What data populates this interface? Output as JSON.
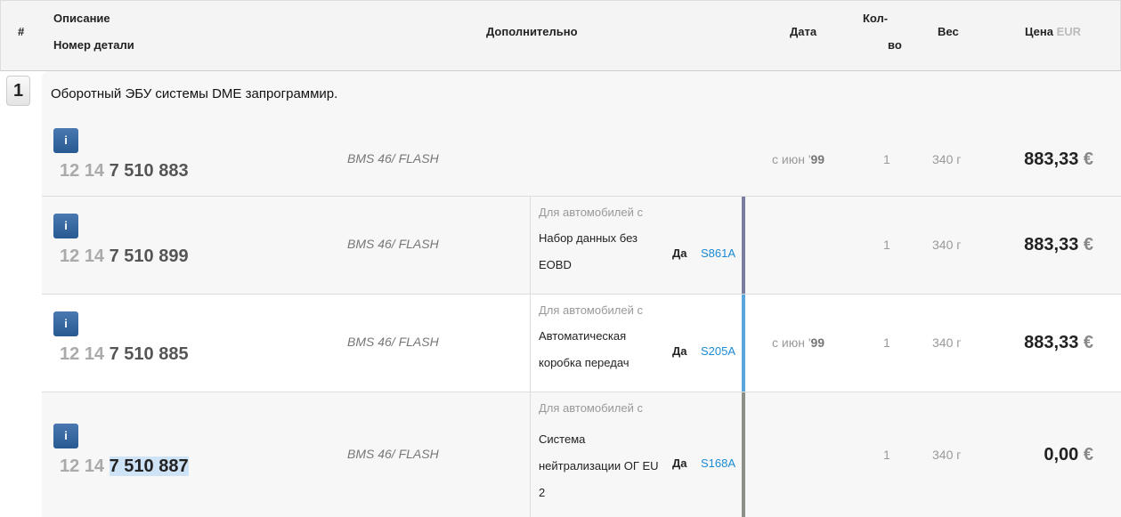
{
  "header": {
    "num": "#",
    "desc": "Описание",
    "part": "Номер детали",
    "extra": "Дополнительно",
    "date": "Дата",
    "qty1": "Кол-",
    "qty2": "во",
    "weight": "Вес",
    "price": "Цена",
    "currency": "EUR"
  },
  "group": {
    "index": "1",
    "title": "Оборотный ЭБУ системы DME запрограммир."
  },
  "rows": [
    {
      "pn_a": "12",
      "pn_b": "14",
      "pn_c": "7 510 883",
      "info": "i",
      "extra": "BMS 46/ FLASH",
      "for": "",
      "cond": "",
      "yes": "",
      "code": "",
      "date_pre": "с июн '",
      "date_year": "99",
      "qty": "1",
      "weight": "340 г",
      "price": "883,33",
      "cur": "€",
      "bar": ""
    },
    {
      "pn_a": "12",
      "pn_b": "14",
      "pn_c": "7 510 899",
      "info": "i",
      "extra": "BMS 46/ FLASH",
      "for": "Для автомобилей с",
      "cond": "Набор данных без EOBD",
      "yes": "Да",
      "code": "S861A",
      "date_pre": "",
      "date_year": "",
      "qty": "1",
      "weight": "340 г",
      "price": "883,33",
      "cur": "€",
      "bar": "#7a7ca2"
    },
    {
      "pn_a": "12",
      "pn_b": "14",
      "pn_c": "7 510 885",
      "info": "i",
      "extra": "BMS 46/ FLASH",
      "for": "Для автомобилей с",
      "cond": "Автоматическая коробка передач",
      "yes": "Да",
      "code": "S205A",
      "date_pre": "с июн '",
      "date_year": "99",
      "qty": "1",
      "weight": "340 г",
      "price": "883,33",
      "cur": "€",
      "bar": "#58a6da"
    },
    {
      "pn_a": "12",
      "pn_b": "14",
      "pn_c": "7 510 887",
      "info": "i",
      "extra": "BMS 46/ FLASH",
      "for": "Для автомобилей с",
      "cond": "Система нейтрализации ОГ EU 2",
      "yes": "Да",
      "code": "S168A",
      "date_pre": "",
      "date_year": "",
      "qty": "1",
      "weight": "340 г",
      "price": "0,00",
      "cur": "€",
      "bar": "#8a8f88"
    }
  ]
}
